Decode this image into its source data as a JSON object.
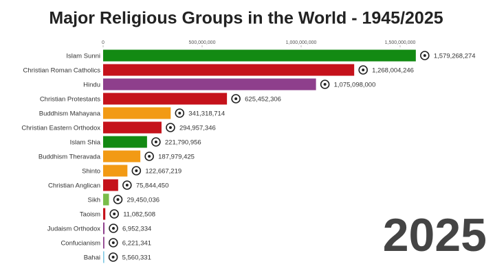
{
  "chart_data": {
    "type": "bar",
    "orientation": "horizontal",
    "title": "Major Religious Groups in the World - 1945/2025",
    "annotation": "2025",
    "categories": [
      "Islam Sunni",
      "Christian Roman Catholics",
      "Hindu",
      "Christian Protestants",
      "Buddhism Mahayana",
      "Christian Eastern Orthodox",
      "Islam Shia",
      "Buddhism Theravada",
      "Shinto",
      "Christian Anglican",
      "Sikh",
      "Taoism",
      "Judaism Orthodox",
      "Confucianism",
      "Bahai"
    ],
    "values": [
      1579268274,
      1268004246,
      1075098000,
      625452306,
      341318714,
      294957346,
      221790956,
      187979425,
      122667219,
      75844450,
      29450036,
      11082508,
      6952334,
      6221341,
      5560331
    ],
    "value_labels": [
      "1,579,268,274",
      "1,268,004,246",
      "1,075,098,000",
      "625,452,306",
      "341,318,714",
      "294,957,346",
      "221,790,956",
      "187,979,425",
      "122,667,219",
      "75,844,450",
      "29,450,036",
      "11,082,508",
      "6,952,334",
      "6,221,341",
      "5,560,331"
    ],
    "colors": [
      "#138a13",
      "#c5121b",
      "#8e3f8c",
      "#c5121b",
      "#f29a14",
      "#c5121b",
      "#138a13",
      "#f29a14",
      "#f29a14",
      "#c5121b",
      "#79bd4a",
      "#c5121b",
      "#8e3f8c",
      "#8e3f8c",
      "#7ec8e3"
    ],
    "xlim": [
      0,
      1750000000
    ],
    "xticks": [
      0,
      {
        "value": 500000000,
        "label": "500,000,000"
      },
      {
        "value": 1000000000,
        "label": "1,000,000,000"
      },
      {
        "value": 1500000000,
        "label": "1,500,000,000"
      }
    ],
    "grid": false
  }
}
